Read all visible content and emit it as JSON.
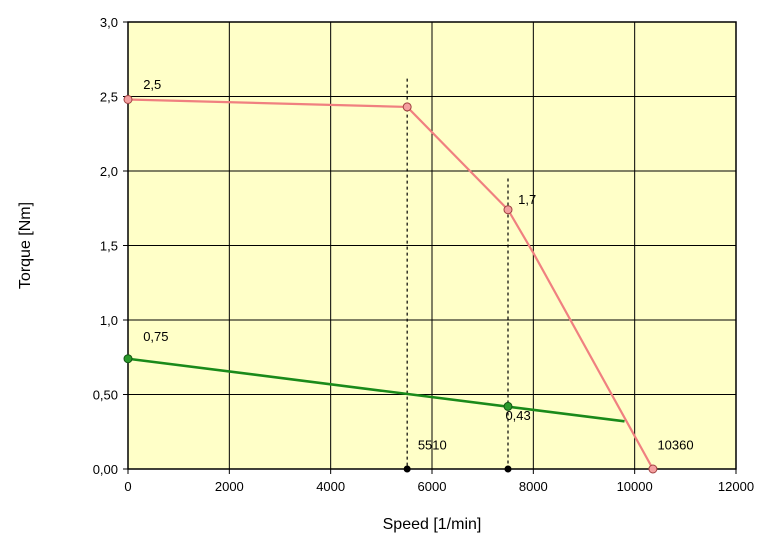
{
  "chart_data": {
    "type": "line",
    "title": "",
    "xlabel": "Speed [1/min]",
    "ylabel": "Torque [Nm]",
    "xlim": [
      0,
      12000
    ],
    "ylim": [
      0,
      3
    ],
    "x_ticks": [
      0,
      2000,
      4000,
      6000,
      8000,
      10000,
      12000
    ],
    "x_tick_labels": [
      "0",
      "2000",
      "4000",
      "6000",
      "8000",
      "10000",
      "12000"
    ],
    "y_ticks": [
      0,
      0.5,
      1.0,
      1.5,
      2.0,
      2.5,
      3.0
    ],
    "y_tick_labels": [
      "0,00",
      "0,50",
      "1,0",
      "1,5",
      "2,0",
      "2,5",
      "3,0"
    ],
    "grid": true,
    "legend": "none",
    "plot_background": "#ffffc8",
    "series": [
      {
        "color": "#f08080",
        "points": [
          {
            "x": 0,
            "y": 2.48
          },
          {
            "x": 5510,
            "y": 2.43
          },
          {
            "x": 7500,
            "y": 1.74
          },
          {
            "x": 8000,
            "y": 1.45
          },
          {
            "x": 10360,
            "y": 0.0
          }
        ],
        "markers": [
          {
            "x": 0,
            "y": 2.48
          },
          {
            "x": 5510,
            "y": 2.43
          },
          {
            "x": 7500,
            "y": 1.74
          },
          {
            "x": 10360,
            "y": 0.0
          }
        ]
      },
      {
        "color": "#1a8a1a",
        "points": [
          {
            "x": 0,
            "y": 0.74
          },
          {
            "x": 9800,
            "y": 0.32
          }
        ],
        "markers": [
          {
            "x": 0,
            "y": 0.74
          },
          {
            "x": 7500,
            "y": 0.42
          }
        ]
      }
    ],
    "vertical_markers": [
      {
        "x": 5510,
        "y_top": 2.62
      },
      {
        "x": 7500,
        "y_top": 1.95
      }
    ],
    "baseline_points": [
      {
        "x": 5510,
        "y": 0
      },
      {
        "x": 7500,
        "y": 0
      }
    ],
    "annotations": [
      {
        "text": "2,5",
        "x": 300,
        "y": 2.55
      },
      {
        "text": "1,7",
        "x": 7700,
        "y": 1.78
      },
      {
        "text": "0,75",
        "x": 300,
        "y": 0.86
      },
      {
        "text": "0,43",
        "x": 7450,
        "y": 0.33
      },
      {
        "text": "5510",
        "x": 5720,
        "y": 0.13
      },
      {
        "text": "10360",
        "x": 10450,
        "y": 0.13
      }
    ]
  }
}
